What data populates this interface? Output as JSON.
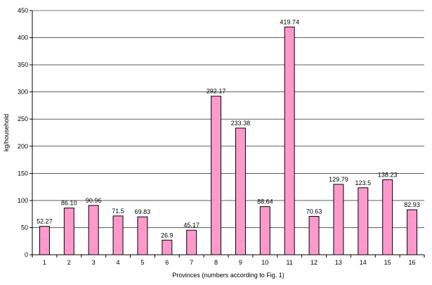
{
  "chart_data": {
    "type": "bar",
    "categories": [
      "1",
      "2",
      "3",
      "4",
      "5",
      "6",
      "7",
      "8",
      "9",
      "10",
      "11",
      "12",
      "13",
      "14",
      "15",
      "16"
    ],
    "values": [
      52.27,
      86.1,
      90.96,
      71.5,
      69.83,
      26.9,
      45.17,
      292.17,
      233.38,
      88.64,
      419.74,
      70.63,
      129.79,
      123.5,
      138.23,
      82.93
    ],
    "data_labels": [
      "52.27",
      "86.10",
      "90.96",
      "71.5",
      "69.83",
      "26.9",
      "45.17",
      "292.17",
      "233.38",
      "88.64",
      "419.74",
      "70.63",
      "129.79",
      "123.5",
      "138.23",
      "82.93"
    ],
    "title": "",
    "xlabel": "Provinces (numbers according to Fig. 1)",
    "ylabel": "kg/household",
    "ylim": [
      0,
      450
    ],
    "yticks": [
      0,
      50,
      100,
      150,
      200,
      250,
      300,
      350,
      400,
      450
    ],
    "grid": true,
    "legend": false,
    "bar_color": "#FF99CC"
  }
}
